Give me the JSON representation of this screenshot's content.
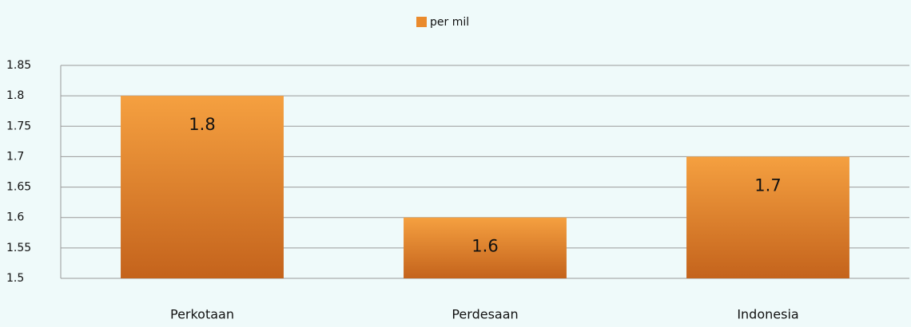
{
  "chart_data": {
    "type": "bar",
    "categories": [
      "Perkotaan",
      "Perdesaan",
      "Indonesia"
    ],
    "series": [
      {
        "name": "per mil",
        "color": "#ea8a2c",
        "values": [
          1.8,
          1.6,
          1.7
        ]
      }
    ],
    "ylim": [
      1.5,
      1.85
    ],
    "yticks": [
      1.5,
      1.55,
      1.6,
      1.65,
      1.7,
      1.75,
      1.8,
      1.85
    ],
    "grid": true,
    "legend": "top"
  }
}
